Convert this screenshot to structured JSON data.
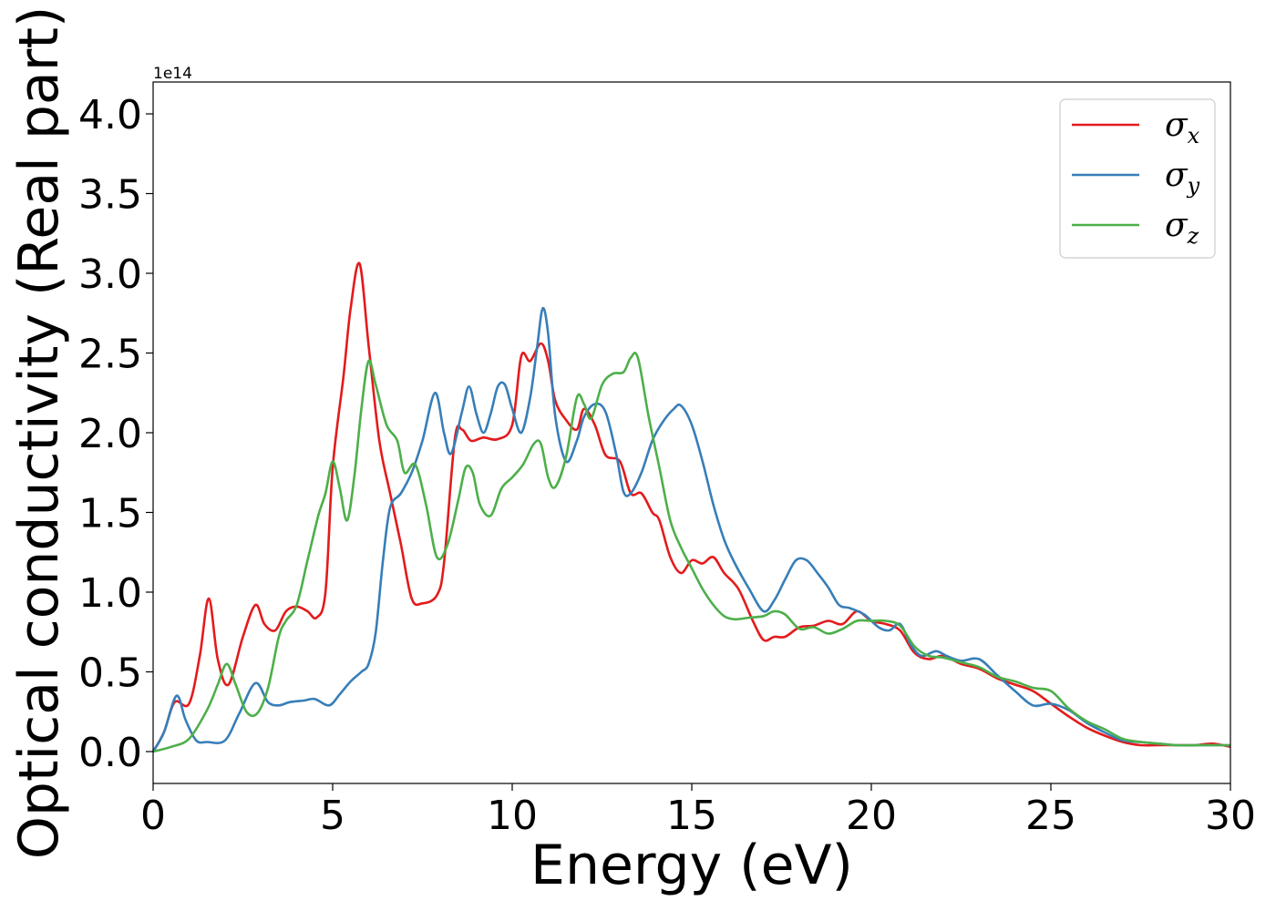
{
  "chart_data": {
    "type": "line",
    "title": "",
    "xlabel": "Energy (eV)",
    "ylabel": "Optical conductivity (Real part)",
    "y_offset_label": "1e14",
    "xlim": [
      0,
      30
    ],
    "ylim": [
      -0.2,
      4.2
    ],
    "xticks": [
      0,
      5,
      10,
      15,
      20,
      25,
      30
    ],
    "xtick_labels": [
      "0",
      "5",
      "10",
      "15",
      "20",
      "25",
      "30"
    ],
    "yticks": [
      0.0,
      0.5,
      1.0,
      1.5,
      2.0,
      2.5,
      3.0,
      3.5,
      4.0
    ],
    "ytick_labels": [
      "0.0",
      "0.5",
      "1.0",
      "1.5",
      "2.0",
      "2.5",
      "3.0",
      "3.5",
      "4.0"
    ],
    "grid": false,
    "legend_position": "top-right",
    "series": [
      {
        "name": "σ_x",
        "symbol": "σ",
        "subscript": "x",
        "color": "#e41a1c",
        "x": [
          0,
          0.3,
          0.6,
          1.0,
          1.3,
          1.55,
          1.8,
          2.1,
          2.5,
          2.85,
          3.1,
          3.4,
          3.7,
          4.0,
          4.3,
          4.55,
          4.8,
          5.0,
          5.3,
          5.5,
          5.75,
          6.0,
          6.3,
          6.6,
          6.9,
          7.2,
          7.5,
          7.9,
          8.1,
          8.4,
          8.6,
          8.85,
          9.2,
          9.6,
          10.0,
          10.25,
          10.5,
          10.8,
          11.0,
          11.2,
          11.5,
          11.8,
          12.0,
          12.3,
          12.6,
          13.0,
          13.3,
          13.6,
          13.9,
          14.1,
          14.4,
          14.7,
          15.0,
          15.3,
          15.6,
          15.9,
          16.3,
          16.7,
          17.0,
          17.3,
          17.6,
          18.0,
          18.4,
          18.8,
          19.2,
          19.6,
          20.0,
          20.4,
          20.8,
          21.2,
          21.6,
          22.0,
          22.5,
          23.0,
          23.5,
          24.0,
          24.5,
          25.0,
          25.5,
          26.0,
          26.5,
          27.0,
          27.5,
          28.0,
          28.5,
          29.0,
          29.5,
          30.0
        ],
        "y": [
          0.0,
          0.12,
          0.31,
          0.3,
          0.6,
          0.96,
          0.58,
          0.42,
          0.72,
          0.92,
          0.8,
          0.76,
          0.88,
          0.91,
          0.88,
          0.84,
          1.0,
          1.78,
          2.35,
          2.78,
          3.06,
          2.55,
          1.95,
          1.62,
          1.3,
          0.96,
          0.93,
          0.98,
          1.18,
          1.96,
          2.02,
          1.95,
          1.97,
          1.96,
          2.05,
          2.48,
          2.45,
          2.56,
          2.45,
          2.2,
          2.08,
          2.02,
          2.15,
          2.05,
          1.86,
          1.82,
          1.62,
          1.62,
          1.5,
          1.45,
          1.22,
          1.12,
          1.2,
          1.18,
          1.22,
          1.12,
          1.02,
          0.82,
          0.7,
          0.72,
          0.72,
          0.78,
          0.79,
          0.82,
          0.8,
          0.88,
          0.82,
          0.8,
          0.76,
          0.62,
          0.58,
          0.6,
          0.55,
          0.52,
          0.46,
          0.42,
          0.38,
          0.3,
          0.22,
          0.15,
          0.1,
          0.06,
          0.04,
          0.04,
          0.04,
          0.04,
          0.05,
          0.03
        ]
      },
      {
        "name": "σ_y",
        "symbol": "σ",
        "subscript": "y",
        "color": "#377eb8",
        "x": [
          0,
          0.3,
          0.65,
          0.9,
          1.2,
          1.5,
          2.0,
          2.4,
          2.85,
          3.2,
          3.5,
          3.8,
          4.2,
          4.5,
          4.9,
          5.2,
          5.5,
          5.8,
          6.0,
          6.2,
          6.4,
          6.6,
          6.9,
          7.2,
          7.5,
          7.85,
          8.1,
          8.3,
          8.6,
          8.8,
          9.0,
          9.2,
          9.4,
          9.6,
          9.8,
          10.0,
          10.25,
          10.5,
          10.7,
          10.85,
          11.0,
          11.2,
          11.5,
          11.8,
          12.0,
          12.3,
          12.6,
          12.9,
          13.1,
          13.3,
          13.6,
          13.9,
          14.2,
          14.5,
          14.7,
          15.0,
          15.3,
          15.6,
          15.9,
          16.2,
          16.6,
          17.0,
          17.3,
          17.6,
          17.9,
          18.2,
          18.5,
          18.8,
          19.1,
          19.4,
          19.8,
          20.2,
          20.5,
          20.8,
          21.1,
          21.4,
          21.8,
          22.1,
          22.5,
          23.0,
          23.5,
          24.0,
          24.5,
          25.0,
          25.5,
          26.0,
          26.5,
          27.0,
          27.5,
          28.0,
          28.5,
          29.0,
          29.5,
          30.0
        ],
        "y": [
          0.0,
          0.12,
          0.35,
          0.2,
          0.07,
          0.06,
          0.07,
          0.24,
          0.43,
          0.31,
          0.29,
          0.31,
          0.32,
          0.33,
          0.29,
          0.36,
          0.44,
          0.5,
          0.55,
          0.75,
          1.2,
          1.53,
          1.62,
          1.75,
          1.95,
          2.25,
          2.0,
          1.87,
          2.13,
          2.29,
          2.12,
          2.0,
          2.12,
          2.29,
          2.3,
          2.15,
          2.0,
          2.22,
          2.55,
          2.78,
          2.62,
          2.1,
          1.82,
          1.95,
          2.1,
          2.18,
          2.13,
          1.86,
          1.63,
          1.62,
          1.75,
          1.95,
          2.07,
          2.15,
          2.17,
          2.05,
          1.82,
          1.55,
          1.33,
          1.18,
          1.02,
          0.88,
          0.95,
          1.08,
          1.2,
          1.2,
          1.12,
          1.03,
          0.92,
          0.9,
          0.86,
          0.78,
          0.76,
          0.8,
          0.67,
          0.6,
          0.63,
          0.6,
          0.57,
          0.58,
          0.48,
          0.38,
          0.29,
          0.3,
          0.26,
          0.18,
          0.12,
          0.07,
          0.06,
          0.05,
          0.04,
          0.04,
          0.04,
          0.04
        ]
      },
      {
        "name": "σ_z",
        "symbol": "σ",
        "subscript": "z",
        "color": "#4daf4a",
        "x": [
          0,
          0.5,
          1.0,
          1.5,
          1.8,
          2.05,
          2.3,
          2.6,
          2.9,
          3.2,
          3.5,
          3.7,
          4.0,
          4.3,
          4.6,
          4.8,
          5.0,
          5.2,
          5.4,
          5.6,
          5.8,
          6.0,
          6.2,
          6.5,
          6.8,
          7.0,
          7.3,
          7.6,
          7.9,
          8.2,
          8.5,
          8.7,
          8.9,
          9.1,
          9.4,
          9.7,
          10.0,
          10.3,
          10.6,
          10.8,
          11.0,
          11.2,
          11.5,
          11.8,
          12.0,
          12.2,
          12.5,
          12.8,
          13.1,
          13.3,
          13.5,
          13.8,
          14.1,
          14.4,
          14.7,
          15.0,
          15.3,
          15.6,
          15.9,
          16.2,
          16.6,
          17.0,
          17.3,
          17.6,
          18.0,
          18.4,
          18.8,
          19.2,
          19.6,
          20.0,
          20.4,
          20.8,
          21.2,
          21.6,
          22.0,
          22.5,
          23.0,
          23.5,
          24.0,
          24.5,
          25.0,
          25.5,
          26.0,
          26.5,
          27.0,
          27.5,
          28.0,
          28.5,
          29.0,
          29.5,
          30.0
        ],
        "y": [
          0.0,
          0.03,
          0.08,
          0.26,
          0.42,
          0.55,
          0.42,
          0.25,
          0.24,
          0.4,
          0.72,
          0.82,
          0.92,
          1.2,
          1.48,
          1.62,
          1.82,
          1.65,
          1.45,
          1.72,
          2.15,
          2.45,
          2.3,
          2.05,
          1.95,
          1.75,
          1.8,
          1.55,
          1.22,
          1.3,
          1.58,
          1.78,
          1.75,
          1.55,
          1.48,
          1.65,
          1.72,
          1.8,
          1.93,
          1.93,
          1.72,
          1.66,
          1.85,
          2.22,
          2.18,
          2.09,
          2.3,
          2.37,
          2.38,
          2.47,
          2.47,
          2.1,
          1.78,
          1.45,
          1.28,
          1.15,
          1.02,
          0.92,
          0.85,
          0.83,
          0.84,
          0.85,
          0.88,
          0.86,
          0.77,
          0.78,
          0.74,
          0.77,
          0.82,
          0.82,
          0.82,
          0.79,
          0.66,
          0.6,
          0.59,
          0.56,
          0.53,
          0.47,
          0.44,
          0.4,
          0.38,
          0.27,
          0.19,
          0.14,
          0.08,
          0.06,
          0.05,
          0.04,
          0.04,
          0.04,
          0.04
        ]
      }
    ]
  }
}
